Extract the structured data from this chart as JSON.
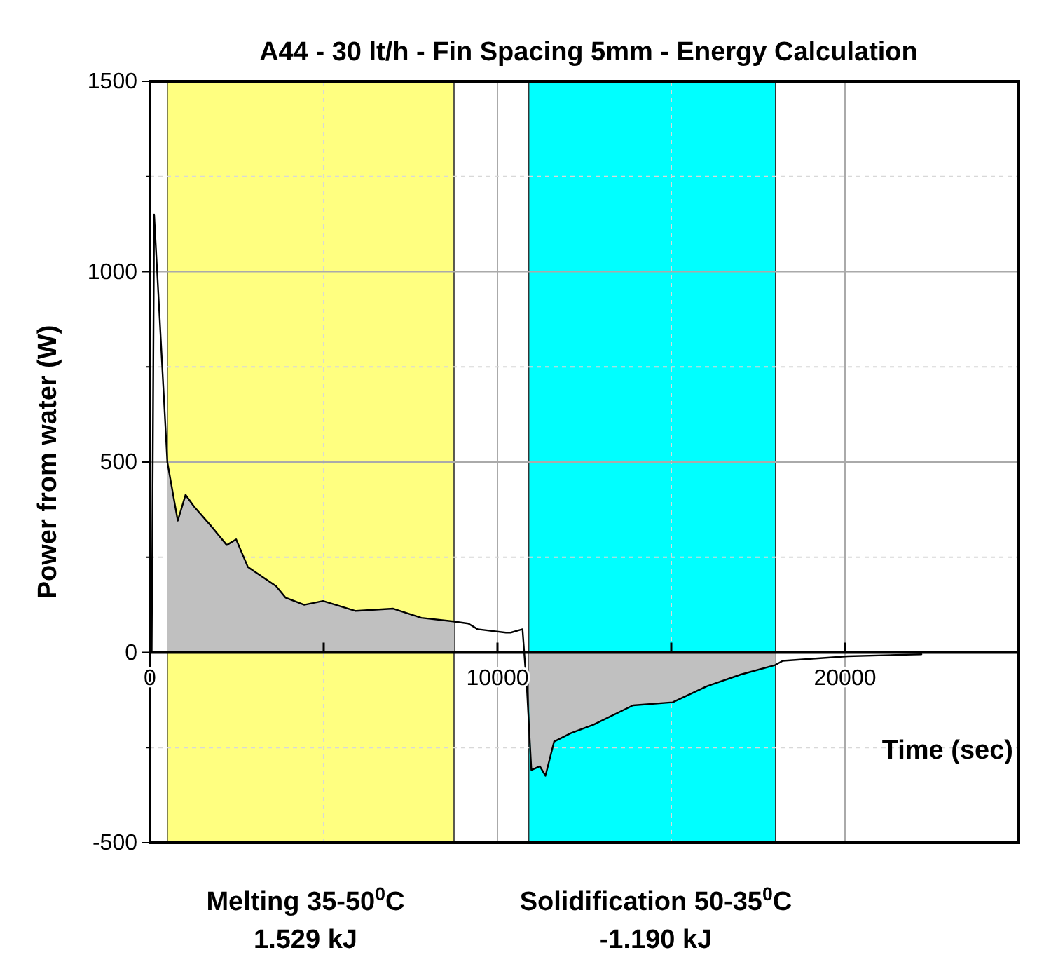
{
  "chart_data": {
    "type": "line",
    "title": "A44 - 30 lt/h - Fin Spacing 5mm - Energy Calculation",
    "xlabel": "Time (sec)",
    "ylabel": "Power from water (W)",
    "xlim": [
      0,
      25000
    ],
    "ylim": [
      -500,
      1500
    ],
    "xticks": [
      0,
      {
        "value": 5000,
        "label": null
      },
      10000,
      {
        "value": 15000,
        "label": null
      },
      20000
    ],
    "yticks": [
      -500,
      {
        "value": -250,
        "label": null
      },
      0,
      {
        "value": 250,
        "label": null
      },
      500,
      {
        "value": 750,
        "label": null
      },
      1000,
      {
        "value": 1250,
        "label": null
      },
      1500
    ],
    "grid": true,
    "bands": [
      {
        "axis": "x",
        "from": 500,
        "to": 8750,
        "color": "#ffff80"
      },
      {
        "axis": "x",
        "from": 10900,
        "to": 18000,
        "color": "#00ffff"
      }
    ],
    "series": [
      {
        "type": "area",
        "color": "#c0c0c0",
        "x": [
          500,
          800,
          1025,
          1270,
          1740,
          2210,
          2480,
          2820,
          3630,
          3900,
          4440,
          4980,
          5920,
          7000,
          7810,
          8690,
          8750
        ],
        "values": [
          500,
          346,
          414,
          383,
          334,
          282,
          297,
          224,
          174,
          144,
          125,
          135,
          109,
          115,
          91,
          82,
          82
        ]
      },
      {
        "type": "area",
        "color": "#c0c0c0",
        "x": [
          10900,
          10975,
          11220,
          11380,
          11630,
          12110,
          12760,
          13900,
          15040,
          16020,
          17000,
          18000
        ],
        "values": [
          -100,
          -309,
          -299,
          -324,
          -234,
          -212,
          -190,
          -139,
          -131,
          -89,
          -58,
          -34
        ]
      },
      {
        "color": "#000000",
        "x": [
          50,
          120,
          500,
          800,
          1025,
          1270,
          1740,
          2210,
          2480,
          2820,
          3630,
          3900,
          4440,
          4980,
          5920,
          7000,
          7810,
          8690,
          9160,
          9430,
          10240,
          10380,
          10720,
          10850,
          10975,
          11220,
          11380,
          11630,
          12110,
          12760,
          13900,
          15040,
          16020,
          17000,
          17970,
          18210,
          20080,
          22200
        ],
        "values": [
          0,
          1150,
          500,
          346,
          414,
          383,
          334,
          282,
          297,
          224,
          174,
          144,
          125,
          135,
          109,
          115,
          91,
          82,
          76,
          61,
          52,
          52,
          61,
          -100,
          -309,
          -299,
          -324,
          -234,
          -212,
          -190,
          -139,
          -131,
          -89,
          -58,
          -34,
          -22,
          -10,
          -5
        ]
      }
    ],
    "annotations": [
      "Melting 35-50$^{0}$C",
      "1.529 kJ",
      "Solidification 50-35$^{0}$C",
      "-1.190 kJ"
    ]
  }
}
